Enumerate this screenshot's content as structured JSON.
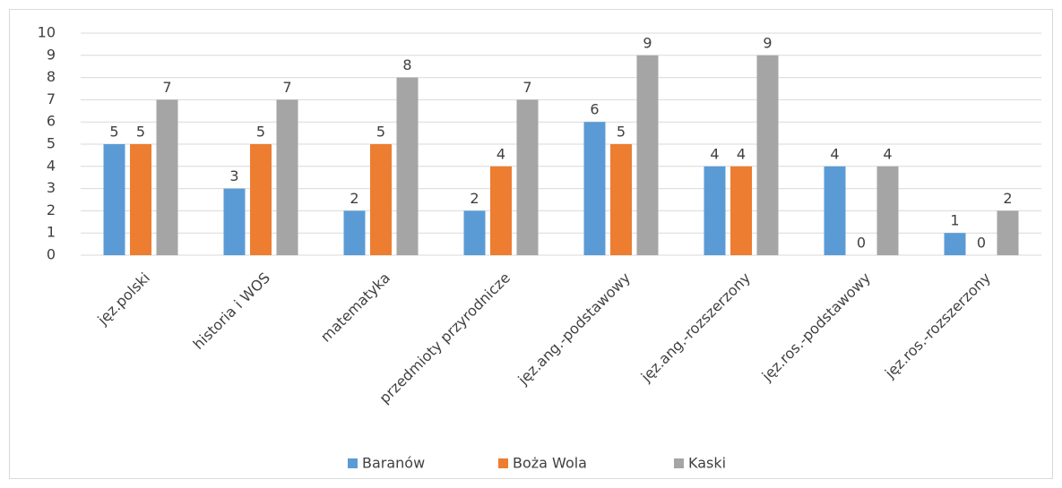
{
  "chart_data": {
    "type": "bar",
    "categories": [
      "jęz.polski",
      "historia i WOS",
      "matematyka",
      "przedmioty przyrodnicze",
      "jęz.ang.-podstawowy",
      "jęz.ang.-rozszerzony",
      "jęz.ros.-podstawowy",
      "jęz.ros.-rozszerzony"
    ],
    "series": [
      {
        "name": "Baranów",
        "color": "#5b9bd5",
        "values": [
          5,
          3,
          2,
          2,
          6,
          4,
          4,
          1
        ]
      },
      {
        "name": "Boża Wola",
        "color": "#ed7d31",
        "values": [
          5,
          5,
          5,
          4,
          5,
          4,
          0,
          0
        ]
      },
      {
        "name": "Kaski",
        "color": "#a5a5a5",
        "values": [
          7,
          7,
          8,
          7,
          9,
          9,
          4,
          2
        ]
      }
    ],
    "ylim": [
      0,
      10
    ],
    "yticks": [
      0,
      1,
      2,
      3,
      4,
      5,
      6,
      7,
      8,
      9,
      10
    ],
    "grid": true,
    "legend": "bottom",
    "data_labels": true
  }
}
